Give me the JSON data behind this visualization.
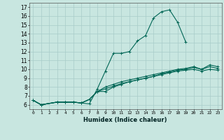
{
  "xlabel": "Humidex (Indice chaleur)",
  "xlim": [
    -0.5,
    23.5
  ],
  "ylim": [
    5.5,
    17.5
  ],
  "xticks": [
    0,
    1,
    2,
    3,
    4,
    5,
    6,
    7,
    8,
    9,
    10,
    11,
    12,
    13,
    14,
    15,
    16,
    17,
    18,
    19,
    20,
    21,
    22,
    23
  ],
  "yticks": [
    6,
    7,
    8,
    9,
    10,
    11,
    12,
    13,
    14,
    15,
    16,
    17
  ],
  "bg_color": "#c8e6e0",
  "grid_color": "#a8ccc8",
  "line_color": "#006655",
  "curves": [
    {
      "x": [
        0,
        1,
        3,
        4,
        5,
        6,
        7,
        8,
        9,
        10,
        11,
        12,
        13,
        14,
        15,
        16,
        17,
        18,
        19
      ],
      "y": [
        6.5,
        6.0,
        6.3,
        6.3,
        6.3,
        6.2,
        6.1,
        7.8,
        9.8,
        11.8,
        11.8,
        12.0,
        13.2,
        13.8,
        15.8,
        16.5,
        16.7,
        15.3,
        13.1
      ]
    },
    {
      "x": [
        0,
        1,
        3,
        4,
        5,
        6,
        7,
        8,
        9,
        10,
        11,
        12,
        13,
        14,
        15,
        16,
        17,
        18,
        19,
        20,
        21,
        22,
        23
      ],
      "y": [
        6.5,
        6.0,
        6.3,
        6.3,
        6.3,
        6.2,
        6.6,
        7.5,
        8.0,
        8.3,
        8.6,
        8.8,
        9.0,
        9.2,
        9.4,
        9.6,
        9.8,
        10.0,
        10.1,
        10.3,
        10.0,
        10.5,
        10.3
      ]
    },
    {
      "x": [
        0,
        1,
        3,
        4,
        5,
        6,
        7,
        8,
        9,
        10,
        11,
        12,
        13,
        14,
        15,
        16,
        17,
        18,
        19,
        20,
        21,
        22,
        23
      ],
      "y": [
        6.5,
        6.0,
        6.3,
        6.3,
        6.3,
        6.2,
        6.6,
        7.5,
        7.8,
        8.1,
        8.4,
        8.6,
        8.8,
        9.0,
        9.2,
        9.4,
        9.6,
        9.8,
        9.9,
        10.0,
        9.8,
        10.0,
        9.9
      ]
    },
    {
      "x": [
        0,
        1,
        3,
        4,
        5,
        6,
        7,
        8,
        9,
        10,
        11,
        12,
        13,
        14,
        15,
        16,
        17,
        18,
        19,
        20,
        21,
        22,
        23
      ],
      "y": [
        6.5,
        6.0,
        6.3,
        6.3,
        6.3,
        6.2,
        6.6,
        7.5,
        7.5,
        8.0,
        8.3,
        8.6,
        8.8,
        9.0,
        9.2,
        9.5,
        9.7,
        9.9,
        10.0,
        10.2,
        10.0,
        10.3,
        10.1
      ]
    }
  ]
}
